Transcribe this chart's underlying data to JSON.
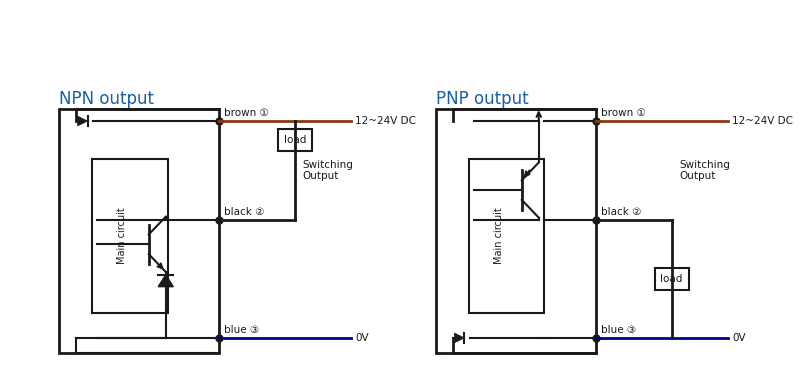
{
  "bg_color": "#ffffff",
  "line_color": "#1a1a1a",
  "brown_color": "#8B3A0F",
  "blue_color": "#00008B",
  "title_color": "#1a5fa8",
  "fig_width": 8.0,
  "fig_height": 3.89,
  "npn_title": "NPN output",
  "pnp_title": "PNP output",
  "brown_label": "brown ①",
  "black_label": "black ②",
  "blue_label": "blue ③",
  "dc_label": "12~24V DC",
  "ov_label": "0V",
  "load_label": "load",
  "switching_label": "Switching\nOutput",
  "main_circuit_label": "Main circuit"
}
